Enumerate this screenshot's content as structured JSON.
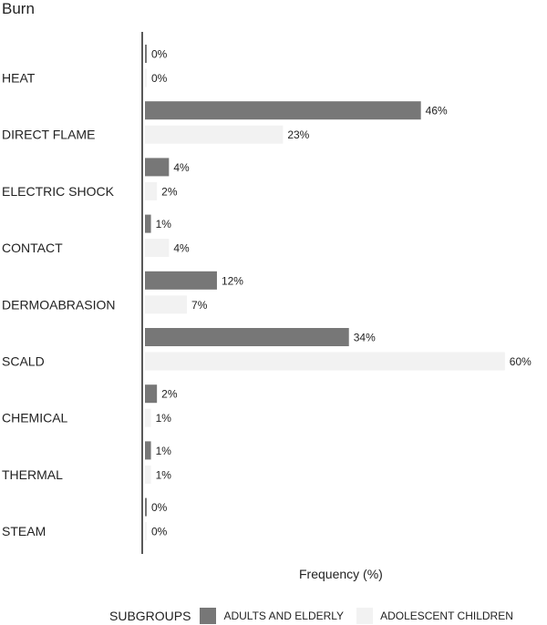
{
  "chart_data": {
    "type": "bar",
    "orientation": "horizontal",
    "title": "Burn",
    "xlabel": "Frequency (%)",
    "ylabel": "",
    "categories": [
      "HEAT",
      "DIRECT FLAME",
      "ELECTRIC SHOCK",
      "CONTACT",
      "DERMOABRASION",
      "SCALD",
      "CHEMICAL",
      "THERMAL",
      "STEAM"
    ],
    "series": [
      {
        "name": "ADULTS AND ELDERLY",
        "color": "#777777",
        "values": [
          0,
          46,
          4,
          1,
          12,
          34,
          2,
          1,
          0
        ],
        "labels": [
          "0%",
          "46%",
          "4%",
          "1%",
          "12%",
          "34%",
          "2%",
          "1%",
          "0%"
        ]
      },
      {
        "name": "ADOLESCENT CHILDREN",
        "color": "#f2f2f2",
        "values": [
          0,
          23,
          2,
          4,
          7,
          60,
          1,
          1,
          0
        ],
        "labels": [
          "0%",
          "23%",
          "2%",
          "4%",
          "7%",
          "60%",
          "1%",
          "1%",
          "0%"
        ]
      }
    ],
    "legend": {
      "title": "SUBGROUPS",
      "position": "bottom"
    },
    "grid": false
  }
}
